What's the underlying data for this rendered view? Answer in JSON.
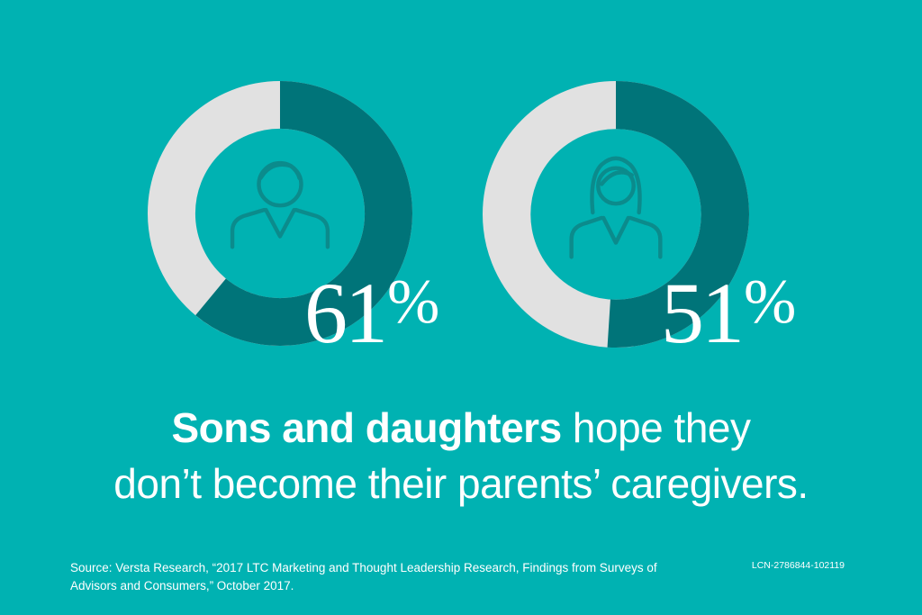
{
  "chart_data": [
    {
      "type": "pie",
      "value": 61,
      "label": "61",
      "unit": "%",
      "icon": "man-icon",
      "colors": {
        "fill": "#007479",
        "rest": "#e1e1e1"
      }
    },
    {
      "type": "pie",
      "value": 51,
      "label": "51",
      "unit": "%",
      "icon": "woman-icon",
      "colors": {
        "fill": "#007479",
        "rest": "#e1e1e1"
      }
    }
  ],
  "headline": {
    "bold": "Sons and daughters",
    "rest_line1": " hope they",
    "line2": "don’t become their parents’ caregivers."
  },
  "source": "Source: Versta Research, “2017 LTC Marketing and Thought Leadership Research, Findings from Surveys of Advisors and Consumers,” October 2017.",
  "code": "LCN-2786844-102119",
  "colors": {
    "background": "#00b2b2",
    "icon_stroke": "#0b8b8c"
  }
}
